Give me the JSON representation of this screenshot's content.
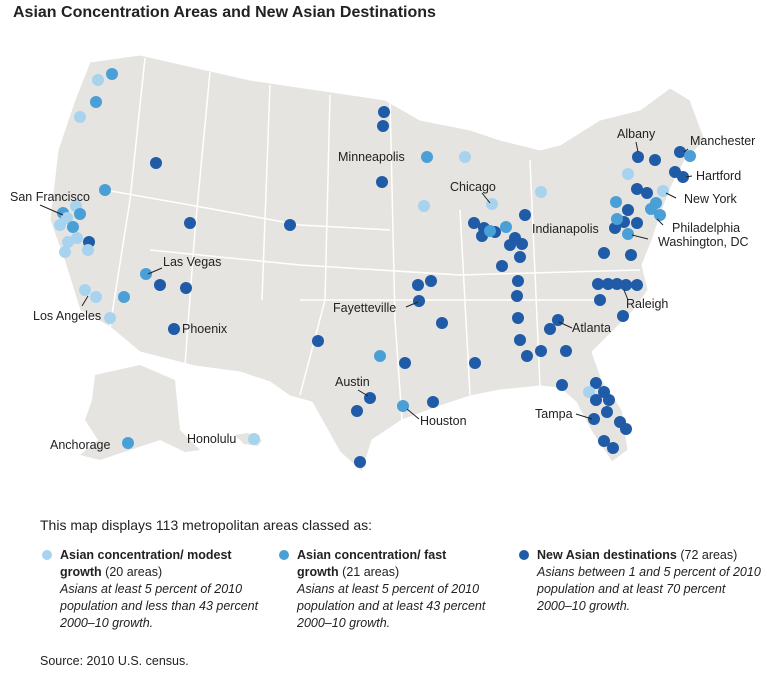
{
  "title": "Asian Concentration Areas and New Asian Destinations",
  "colors": {
    "modest": "#a8d3ef",
    "fast": "#4a9fd6",
    "new": "#1f5ba6",
    "land": "#e6e4e0",
    "border": "#ffffff"
  },
  "cities": [
    "San Francisco",
    "Las Vegas",
    "Los Angeles",
    "Phoenix",
    "Anchorage",
    "Honolulu",
    "Minneapolis",
    "Chicago",
    "Indianapolis",
    "Fayetteville",
    "Austin",
    "Houston",
    "Atlanta",
    "Tampa",
    "Raleigh",
    "Albany",
    "Manchester",
    "Hartford",
    "New York",
    "Philadelphia",
    "Washington, DC"
  ],
  "legend": {
    "intro": "This map displays 113 metropolitan areas classed as:",
    "items": [
      {
        "title": "Asian concentration/ modest growth",
        "count": "(20 areas)",
        "desc": "Asians at least 5 percent of 2010 population and less than 43 percent 2000–10 growth."
      },
      {
        "title": "Asian concentration/ fast growth",
        "count": "(21 areas)",
        "desc": "Asians at least 5 percent of 2010 population and at least 43 percent 2000–10 growth."
      },
      {
        "title": "New Asian destinations",
        "count": "(72 areas)",
        "desc": "Asians between 1 and 5 percent of 2010 population and at least 70 percent 2000–10 growth."
      }
    ]
  },
  "source": "Source: 2010 U.S. census."
}
